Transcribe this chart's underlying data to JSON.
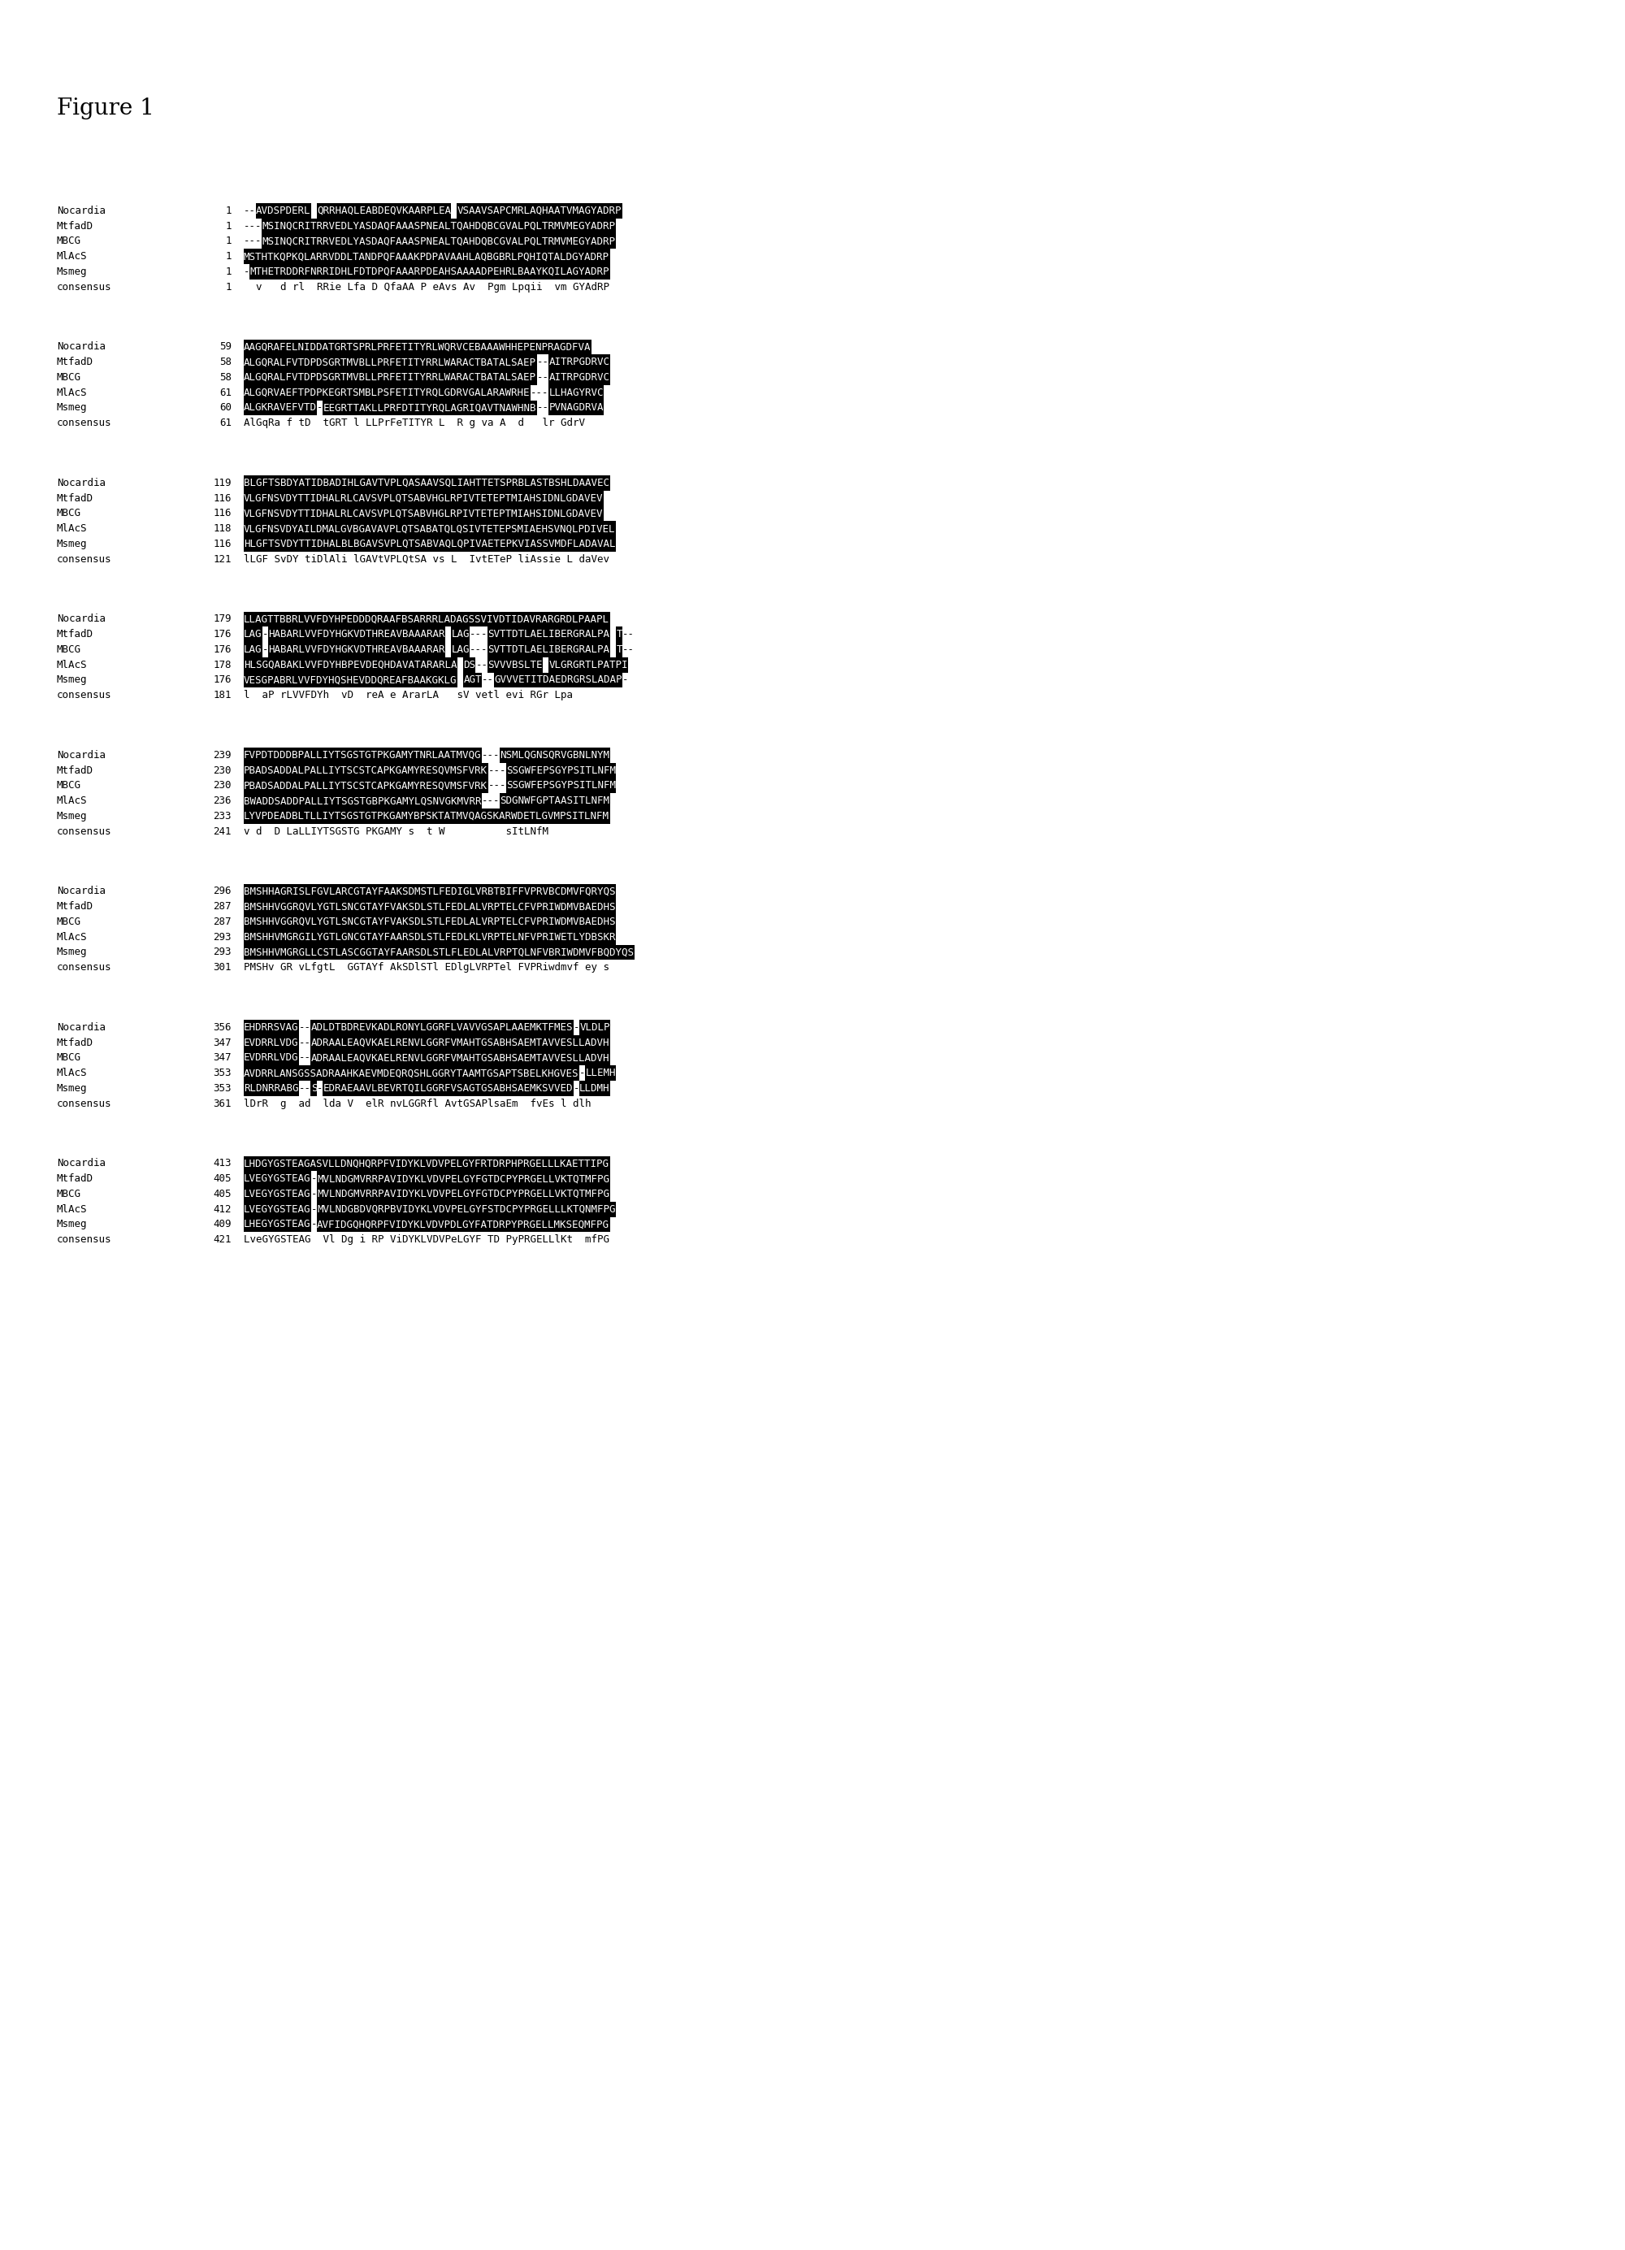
{
  "title": "Figure 1",
  "figure_bg": "#ffffff",
  "title_fontsize": 20,
  "seq_fontsize": 9.0,
  "blocks": [
    {
      "rows": [
        {
          "name": "Nocardia",
          "num": "1",
          "seq": "--AVDSPDERL QRRHAQLEABDEQVKAARPLEA VSAAVSAPCMRLAQHAATVMAGYADRP"
        },
        {
          "name": "MtfadD",
          "num": "1",
          "seq": "---MSINQCRITRRVEDLYASDAQFAAASPNEALTQAHDQBCGVALPQLTRMVMEGYADRP"
        },
        {
          "name": "MBCG",
          "num": "1",
          "seq": "---MSINQCRITRRVEDLYASDAQFAAASPNEALTQAHDQBCGVALPQLTRMVMEGYADRP"
        },
        {
          "name": "MlAcS",
          "num": "1",
          "seq": "MSTHTKQPKQLARRVDDLTANDPQFAAAKPDPAVAAHLAQBGBRLPQHIQTALDGYADRP"
        },
        {
          "name": "Msmeg",
          "num": "1",
          "seq": "-MTHETRDDRFNRRIDHLFDTDPQFAAARPDEAHSAAAADPEHRLBAAYKQILAGYADRP"
        },
        {
          "name": "consensus",
          "num": "1",
          "seq": "  v   d rl  RRie Lfa D QfaAA P eAvs Av  Pgm Lpqii  vm GYAdRP"
        }
      ]
    },
    {
      "rows": [
        {
          "name": "Nocardia",
          "num": "59",
          "seq": "AAGQRAFELNIDDATGRTSPRLPRFETITYRLWQRVCEBAAAWHHEPENPRAGDFVA"
        },
        {
          "name": "MtfadD",
          "num": "58",
          "seq": "ALGQRALFVTDPDSGRTMVBLLPRFETITYRRLWARACTBATALSAEP--AITRPGDRVC"
        },
        {
          "name": "MBCG",
          "num": "58",
          "seq": "ALGQRALFVTDPDSGRTMVBLLPRFETITYRRLWARACTBATALSAEP--AITRPGDRVC"
        },
        {
          "name": "MlAcS",
          "num": "61",
          "seq": "ALGQRVAEFTPDPKEGRTSMBLPSFETITYRQLGDRVGALARAWRHE---LLHAGYRVC"
        },
        {
          "name": "Msmeg",
          "num": "60",
          "seq": "ALGKRAVEFVTD-EEGRTTAKLLPRFDTITYRQLAGRIQAVTNAWHNB--PVNAGDRVA"
        },
        {
          "name": "consensus",
          "num": "61",
          "seq": "AlGqRa f tD  tGRT l LLPrFeTITYR L  R g va A  d   lr GdrV"
        }
      ]
    },
    {
      "rows": [
        {
          "name": "Nocardia",
          "num": "119",
          "seq": "BLGFTSBDYATIDBADIHLGAVTVPLQASAAVSQLIAHTTETSPRBLASTBSHLDAAVEC"
        },
        {
          "name": "MtfadD",
          "num": "116",
          "seq": "VLGFNSVDYTTIDHALRLCAVSVPLQTSABVHGLRPIVTETEPTMIAHSIDNLGDAVEV"
        },
        {
          "name": "MBCG",
          "num": "116",
          "seq": "VLGFNSVDYTTIDHALRLCAVSVPLQTSABVHGLRPIVTETEPTMIAHSIDNLGDAVEV"
        },
        {
          "name": "MlAcS",
          "num": "118",
          "seq": "VLGFNSVDYAILDMALGVBGAVAVPLQTSABATQLQSIVTETEPSMIAEHSVNQLPDIVEL"
        },
        {
          "name": "Msmeg",
          "num": "116",
          "seq": "HLGFTSVDYTTIDHALBLBGAVSVPLQTSABVAQLQPIVAETEPKVIASSVMDFLADAVAL"
        },
        {
          "name": "consensus",
          "num": "121",
          "seq": "lLGF SvDY tiDlAli lGAVtVPLQtSA vs L  IvtETeP liAssie L daVev"
        }
      ]
    },
    {
      "rows": [
        {
          "name": "Nocardia",
          "num": "179",
          "seq": "LLAGTTBBRLVVFDYHPEDDDQRAAFBSARRRLADAGSSVIVDTIDAVRARGRDLPAAPL"
        },
        {
          "name": "MtfadD",
          "num": "176",
          "seq": "LAG-HABARLVVFDYHGKVDTHREAVBAAARAR LAG---SVTTDTLAELIBERGRALPA T--"
        },
        {
          "name": "MBCG",
          "num": "176",
          "seq": "LAG-HABARLVVFDYHGKVDTHREAVBAAARAR LAG---SVTTDTLAELIBERGRALPA T--"
        },
        {
          "name": "MlAcS",
          "num": "178",
          "seq": "HLSGQABAKLVVFDYHBPEVDEQHDAVATARARLA DS--SVVVBSLTE VLGRGRTLPATPI"
        },
        {
          "name": "Msmeg",
          "num": "176",
          "seq": "VESGPABRLVVFDYHQSHEVDDQREAFBAAKGKLG AGT--GVVVETITDAEDRGRSLADAP-"
        },
        {
          "name": "consensus",
          "num": "181",
          "seq": "l  aP rLVVFDYh  vD  reA e ArarLA   sV vetl evi RGr Lpa"
        }
      ]
    },
    {
      "rows": [
        {
          "name": "Nocardia",
          "num": "239",
          "seq": "FVPDTDDDBPALLIYTSGSTGTPKGAMYTNRLAATMVQG---NSMLQGNSQRVGBNLNYM"
        },
        {
          "name": "MtfadD",
          "num": "230",
          "seq": "PBADSADDALPALLIYTSCSTCAPKGAMYRESQVMSFVRK---SSGWFEPSGYPSITLNFM"
        },
        {
          "name": "MBCG",
          "num": "230",
          "seq": "PBADSADDALPALLIYTSCSTCAPKGAMYRESQVMSFVRK---SSGWFEPSGYPSITLNFM"
        },
        {
          "name": "MlAcS",
          "num": "236",
          "seq": "BWADDSADDPALLIYTSGSTGBPKGAMYLQSNVGKMVRR---SDGNWFGPTAASITLNFM"
        },
        {
          "name": "Msmeg",
          "num": "233",
          "seq": "LYVPDEADBLTLLIYTSGSTGTPKGAMYBPSKTATMVQAGSKARWDETLGVMPSITLNFM"
        },
        {
          "name": "consensus",
          "num": "241",
          "seq": "v d  D LaLLIYTSGSTG PKGAMY s  t W          sItLNfM"
        }
      ]
    },
    {
      "rows": [
        {
          "name": "Nocardia",
          "num": "296",
          "seq": "BMSHHAGRISLFGVLARCGTAYFAAKSDMSTLFEDIGLVRBTBIFFVPRVBCDMVFQRYQS"
        },
        {
          "name": "MtfadD",
          "num": "287",
          "seq": "BMSHHVGGRQVLYGTLSNCGTAYFVAKSDLSTLFEDLALVRPTELCFVPRIWDMVBAEDHS"
        },
        {
          "name": "MBCG",
          "num": "287",
          "seq": "BMSHHVGGRQVLYGTLSNCGTAYFVAKSDLSTLFEDLALVRPTELCFVPRIWDMVBAEDHS"
        },
        {
          "name": "MlAcS",
          "num": "293",
          "seq": "BMSHHVMGRGILYGTLGNCGTAYFAARSDLSTLFEDLKLVRPTELNFVPRIWETLYDBSKR"
        },
        {
          "name": "Msmeg",
          "num": "293",
          "seq": "BMSHHVMGRGLLCSTLASCGGTAYFAARSDLSTLFLEDLALVRPTQLNFVBRIWDMVFBQDYQS"
        },
        {
          "name": "consensus",
          "num": "301",
          "seq": "PMSHv GR vLfgtL  GGTAYf AkSDlSTl EDlgLVRPTel FVPRiwdmvf ey s"
        }
      ]
    },
    {
      "rows": [
        {
          "name": "Nocardia",
          "num": "356",
          "seq": "EHDRRSVAG--ADLDTBDREVKADLRONYLGGRFLVAVVGSAPLAAEMKTFMES-VLDLP"
        },
        {
          "name": "MtfadD",
          "num": "347",
          "seq": "EVDRRLVDG--ADRAALEAQVKAELRENVLGGRFVMAHTGSABHSAEMTAVVESLLADVH"
        },
        {
          "name": "MBCG",
          "num": "347",
          "seq": "EVDRRLVDG--ADRAALEAQVKAELRENVLGGRFVMAHTGSABHSAEMTAVVESLLADVH"
        },
        {
          "name": "MlAcS",
          "num": "353",
          "seq": "AVDRRLANSGSSADRAAHKAEVMDEQRQSHLGGRYTAAMTGSAPTSBELKHGVES-LLEMH"
        },
        {
          "name": "Msmeg",
          "num": "353",
          "seq": "RLDNRRABG--S-EDRAEAAVLBEVRTQILGGRFVSAGTGSABHSAEMKSVVED-LLDMH"
        },
        {
          "name": "consensus",
          "num": "361",
          "seq": "lDrR  g  ad  lda V  elR nvLGGRfl AvtGSAPlsaEm  fvEs l dlh"
        }
      ]
    },
    {
      "rows": [
        {
          "name": "Nocardia",
          "num": "413",
          "seq": "LHDGYGSTEAGASVLLDNQHQRPFVIDYKLVDVPELGYFRTDRPHPRGELLLKAETTIPG"
        },
        {
          "name": "MtfadD",
          "num": "405",
          "seq": "LVEGYGSTEAG-MVLNDGMVRRPAVIDYKLVDVPELGYFGTDCPYPRGELLVKTQTMFPG"
        },
        {
          "name": "MBCG",
          "num": "405",
          "seq": "LVEGYGSTEAG-MVLNDGMVRRPAVIDYKLVDVPELGYFGTDCPYPRGELLVKTQTMFPG"
        },
        {
          "name": "MlAcS",
          "num": "412",
          "seq": "LVEGYGSTEAG-MVLNDGBDVQRPBVIDYKLVDVPELGYFSTDCPYPRGELLLKTQNMFPG"
        },
        {
          "name": "Msmeg",
          "num": "409",
          "seq": "LHEGYGSTEAG-AVFIDGQHQRPFVIDYKLVDVPDLGYFATDRPYPRGELLMKSEQMFPG"
        },
        {
          "name": "consensus",
          "num": "421",
          "seq": "LveGYGSTEAG  Vl Dg i RP ViDYKLVDVPeLGYF TD PyPRGELLlKt  mfPG"
        }
      ]
    }
  ]
}
